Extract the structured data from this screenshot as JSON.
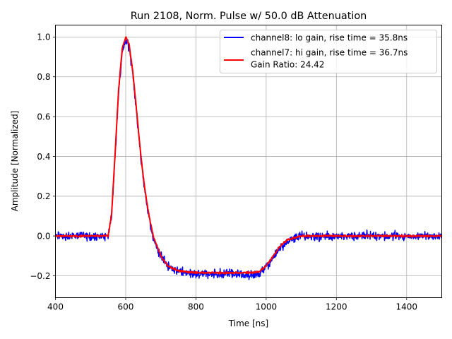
{
  "chart_data": {
    "type": "line",
    "title": "Run 2108, Norm. Pulse w/ 50.0 dB Attenuation",
    "xlabel": "Time [ns]",
    "ylabel": "Amplitude [Normalized]",
    "xlim": [
      400,
      1500
    ],
    "ylim": [
      -0.31,
      1.06
    ],
    "grid": true,
    "legend_position": "top-right",
    "x_ticks": [
      400,
      600,
      800,
      1000,
      1200,
      1400
    ],
    "x_tick_labels": [
      "400",
      "600",
      "800",
      "1000",
      "1200",
      "1400"
    ],
    "y_ticks": [
      -0.2,
      0.0,
      0.2,
      0.4,
      0.6,
      0.8,
      1.0
    ],
    "y_tick_labels": [
      "−0.2",
      "0.0",
      "0.2",
      "0.4",
      "0.6",
      "0.8",
      "1.0"
    ],
    "series": [
      {
        "name": "channel8: lo gain, rise time = 35.8ns",
        "color": "#0000ff",
        "noise": 0.02,
        "x": [
          400,
          500,
          550,
          560,
          570,
          580,
          590,
          600,
          610,
          620,
          630,
          640,
          650,
          660,
          670,
          680,
          700,
          720,
          750,
          800,
          850,
          900,
          950,
          980,
          1000,
          1020,
          1040,
          1060,
          1080,
          1100,
          1150,
          1200,
          1300,
          1400,
          1500
        ],
        "y": [
          0.0,
          0.0,
          0.0,
          0.1,
          0.4,
          0.72,
          0.92,
          0.98,
          0.95,
          0.82,
          0.64,
          0.45,
          0.29,
          0.16,
          0.06,
          -0.02,
          -0.1,
          -0.15,
          -0.18,
          -0.19,
          -0.19,
          -0.19,
          -0.2,
          -0.19,
          -0.16,
          -0.11,
          -0.06,
          -0.03,
          -0.01,
          0.0,
          0.0,
          0.0,
          0.0,
          0.0,
          0.0
        ]
      },
      {
        "name": "channel7: hi gain, rise time = 36.7ns",
        "color": "#ff0000",
        "noise": 0.004,
        "x": [
          400,
          500,
          550,
          560,
          570,
          580,
          590,
          600,
          610,
          620,
          630,
          640,
          650,
          660,
          670,
          680,
          700,
          720,
          750,
          800,
          850,
          900,
          950,
          980,
          1000,
          1020,
          1040,
          1060,
          1080,
          1100,
          1150,
          1200,
          1300,
          1400,
          1500
        ],
        "y": [
          0.0,
          0.0,
          0.0,
          0.11,
          0.42,
          0.74,
          0.94,
          1.0,
          0.96,
          0.83,
          0.65,
          0.46,
          0.3,
          0.17,
          0.07,
          -0.01,
          -0.1,
          -0.15,
          -0.175,
          -0.185,
          -0.185,
          -0.185,
          -0.185,
          -0.18,
          -0.15,
          -0.1,
          -0.05,
          -0.02,
          -0.01,
          0.0,
          0.0,
          0.0,
          0.0,
          0.0,
          0.0
        ]
      }
    ],
    "legend_extra": "Gain Ratio: 24.42"
  }
}
